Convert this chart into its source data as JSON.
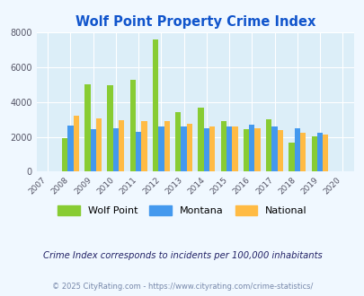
{
  "title": "Wolf Point Property Crime Index",
  "years": [
    2007,
    2008,
    2009,
    2010,
    2011,
    2012,
    2013,
    2014,
    2015,
    2016,
    2017,
    2018,
    2019,
    2020
  ],
  "wolf_point": [
    0,
    1950,
    5000,
    4950,
    5300,
    7580,
    3450,
    3700,
    2900,
    2450,
    3020,
    1680,
    2020,
    0
  ],
  "montana": [
    0,
    2630,
    2470,
    2520,
    2300,
    2590,
    2590,
    2490,
    2620,
    2680,
    2600,
    2490,
    2220,
    0
  ],
  "national": [
    0,
    3200,
    3060,
    2980,
    2920,
    2910,
    2730,
    2600,
    2610,
    2490,
    2380,
    2220,
    2110,
    0
  ],
  "wolf_point_color": "#88cc33",
  "montana_color": "#4499ee",
  "national_color": "#ffbb44",
  "bg_color": "#f0f8ff",
  "plot_bg_color": "#dceef8",
  "title_color": "#1155cc",
  "subtitle_color": "#222266",
  "footnote_color": "#7788aa",
  "subtitle": "Crime Index corresponds to incidents per 100,000 inhabitants",
  "footnote": "© 2025 CityRating.com - https://www.cityrating.com/crime-statistics/",
  "ylim": [
    0,
    8000
  ],
  "yticks": [
    0,
    2000,
    4000,
    6000,
    8000
  ],
  "bar_width": 0.25,
  "legend_labels": [
    "Wolf Point",
    "Montana",
    "National"
  ]
}
